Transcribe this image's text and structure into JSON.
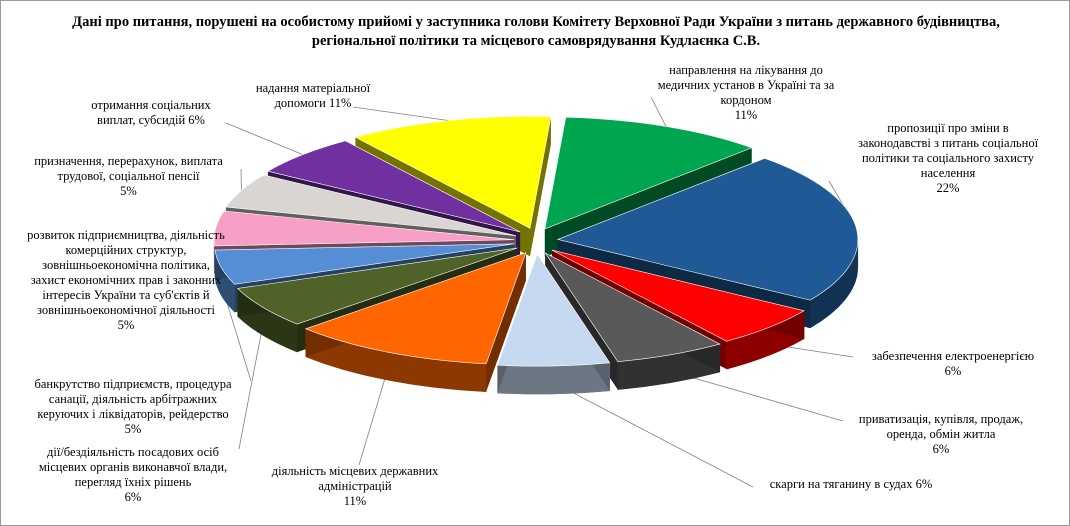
{
  "chart_data": {
    "type": "pie",
    "title": "Дані про питання, порушені на особистому прийомі у заступника голови Комітету Верховної Ради України  з питань державного будівництва, регіональної політики та місцевого самоврядування Кудлаєнка С.В.",
    "slices": [
      {
        "label": "направлення на лікування до медичних установ в Україні та за кордоном",
        "pct_text": "11%",
        "value": 11,
        "color": "#00A550"
      },
      {
        "label": "пропозиції про зміни в законодавстві з питань соціальної політики та соціального захисту населення",
        "pct_text": "22%",
        "value": 22,
        "color": "#1F5A96"
      },
      {
        "label": "забезпечення електроенергією",
        "pct_text": "6%",
        "value": 6,
        "color": "#FF0000"
      },
      {
        "label": "приватизація, купівля, продаж, оренда, обмін житла",
        "pct_text": "6%",
        "value": 6,
        "color": "#595959"
      },
      {
        "label": "скарги на тяганину в судах",
        "pct_text": "6%",
        "value": 6,
        "color": "#C6D9F0"
      },
      {
        "label": "діяльність місцевих державних адміністрацій",
        "pct_text": "11%",
        "value": 11,
        "color": "#FF6600"
      },
      {
        "label": "дії/бездіяльність посадових осіб місцевих органів виконавчої влади, перегляд їхніх рішень",
        "pct_text": "6%",
        "value": 6,
        "color": "#4F6228"
      },
      {
        "label": "банкрутство підприємств, процедура санації, діяльність арбітражних керуючих і ліквідаторів, рейдерство",
        "pct_text": "5%",
        "value": 5,
        "color": "#558ED5"
      },
      {
        "label": "розвиток підприємництва, діяльність комерційних структур, зовнішньоекономічна політика, захист економічних прав і законних інтересів України та суб'єктів й зовнішньоекономічної діяльності",
        "pct_text": "5%",
        "value": 5,
        "color": "#F79FC6"
      },
      {
        "label": "призначення, перерахунок, виплата трудової, соціальної пенсії",
        "pct_text": "5%",
        "value": 5,
        "color": "#D9D5D2"
      },
      {
        "label": "отримання соціальних виплат, субсидій",
        "pct_text": "6%",
        "value": 6,
        "color": "#7030A0"
      },
      {
        "label": "надання матеріальної допомоги",
        "pct_text": "11%",
        "value": 11,
        "color": "#FFFF00"
      }
    ],
    "legend": "none"
  },
  "labels": [
    {
      "text": "направлення на лікування до\nмедичних установ в Україні та за\nкордоном\n11%"
    },
    {
      "text": "пропозиції про зміни в\nзаконодавстві з питань соціальної\nполітики та  соціального захисту\nнаселення\n22%"
    },
    {
      "text": "забезпечення електроенергією\n6%"
    },
    {
      "text": "приватизація, купівля, продаж,\nоренда, обмін житла\n6%"
    },
    {
      "text": "скарги на тяганину в судах 6%"
    },
    {
      "text": "діяльність місцевих державних\nадміністрацій\n11%"
    },
    {
      "text": "дії/бездіяльність посадових осіб\nмісцевих органів виконавчої влади,\nперегляд їхніх  рішень\n6%"
    },
    {
      "text": "банкрутство підприємств, процедура\nсанації, діяльність арбітражних\nкеруючих і ліквідаторів,  рейдерство\n5%"
    },
    {
      "text": "розвиток підприємництва, діяльність\nкомерційних структур,\nзовнішньоекономічна політика,\nзахист  економічних прав і законних\nінтересів України та суб'єктів й\nзовнішньоекономічної діяльності\n5%"
    },
    {
      "text": "призначення, перерахунок, виплата\nтрудової, соціальної пенсії\n5%"
    },
    {
      "text": "отримання соціальних\nвиплат, субсидій 6%"
    },
    {
      "text": "надання матеріальної\nдопомоги 11%"
    }
  ]
}
